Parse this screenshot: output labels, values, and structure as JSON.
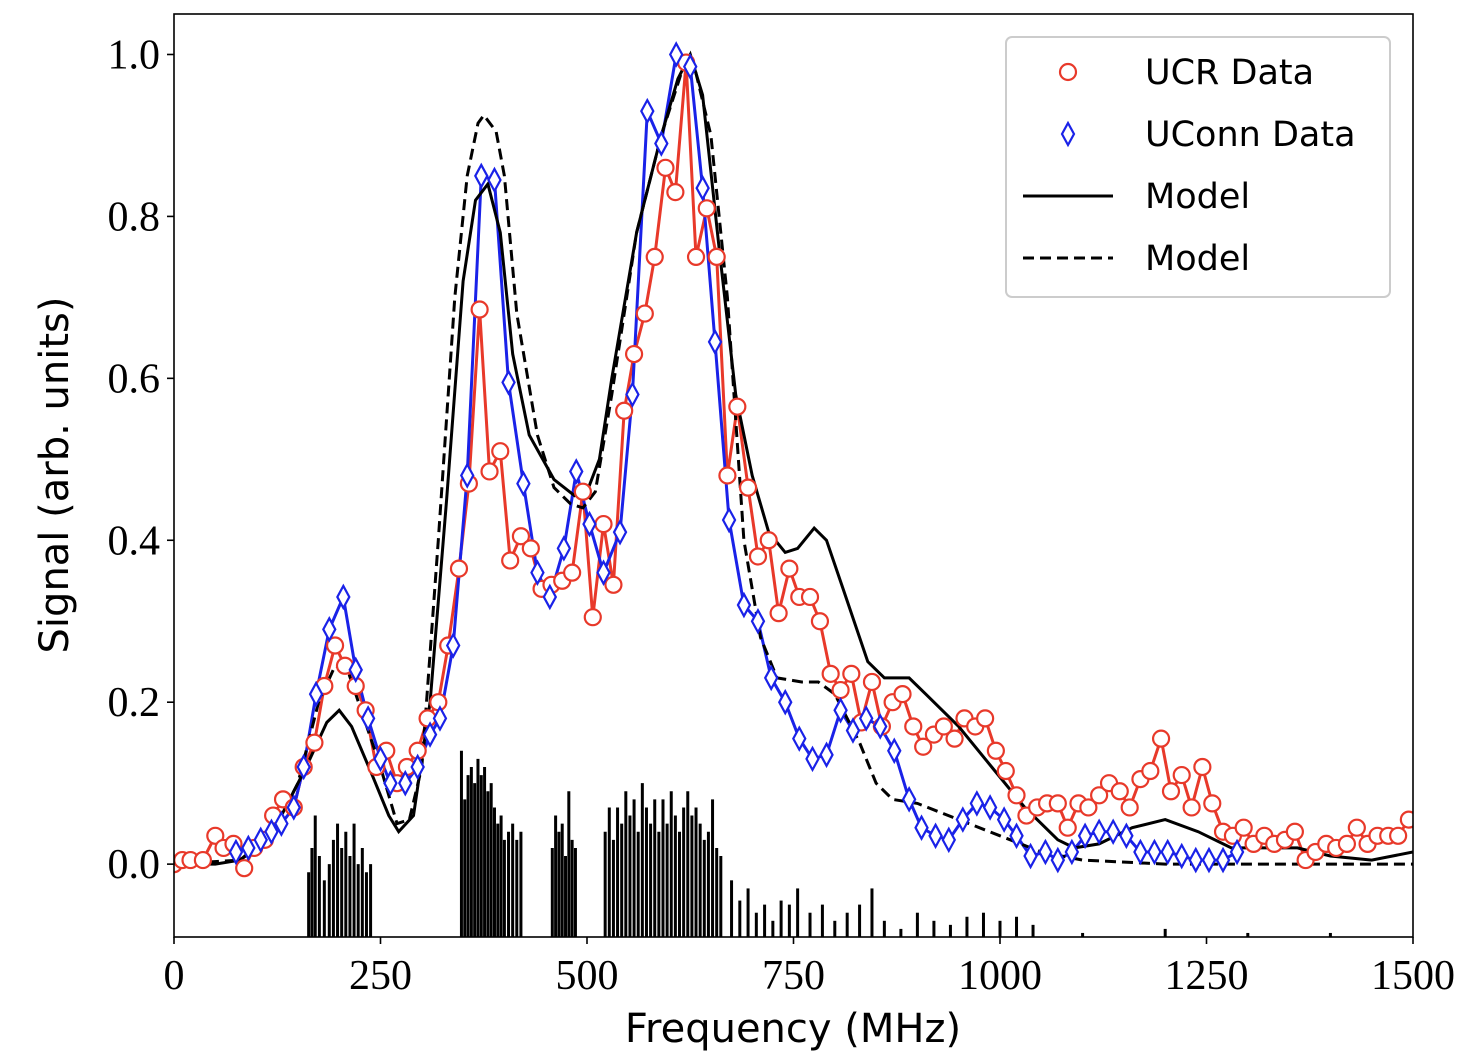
{
  "chart_data": {
    "type": "line",
    "x_label": "Frequency (MHz)",
    "y_label": "Signal (arb. units)",
    "xlim": [
      0,
      1500
    ],
    "ylim": [
      -0.09,
      1.05
    ],
    "xticks": [
      0,
      250,
      500,
      750,
      1000,
      1250,
      1500
    ],
    "yticks": [
      {
        "value": 0,
        "label": "0.0"
      },
      0.2,
      0.4,
      0.6,
      0.8,
      {
        "value": 1,
        "label": "1.0"
      }
    ],
    "legend": "upper right",
    "series": [
      {
        "name": "UCR Data",
        "color": "#e8392a",
        "marker": "circle",
        "linestyle": "solid",
        "x": [
          0,
          10,
          20,
          35,
          50,
          60,
          72,
          85,
          97,
          110,
          120,
          132,
          145,
          157,
          170,
          182,
          195,
          207,
          220,
          232,
          245,
          257,
          270,
          282,
          295,
          307,
          320,
          332,
          345,
          357,
          370,
          382,
          395,
          407,
          420,
          432,
          445,
          457,
          470,
          482,
          495,
          507,
          520,
          532,
          545,
          557,
          570,
          582,
          595,
          607,
          620,
          632,
          645,
          657,
          670,
          682,
          695,
          707,
          720,
          732,
          745,
          757,
          770,
          782,
          795,
          807,
          820,
          832,
          845,
          857,
          870,
          882,
          895,
          907,
          920,
          932,
          945,
          957,
          970,
          982,
          995,
          1007,
          1020,
          1032,
          1045,
          1057,
          1070,
          1082,
          1095,
          1107,
          1120,
          1132,
          1145,
          1157,
          1170,
          1182,
          1195,
          1207,
          1220,
          1232,
          1245,
          1257,
          1270,
          1282,
          1295,
          1307,
          1320,
          1332,
          1345,
          1357,
          1370,
          1382,
          1395,
          1407,
          1420,
          1432,
          1445,
          1457,
          1470,
          1482,
          1495
        ],
        "values": [
          0.0,
          0.005,
          0.005,
          0.005,
          0.035,
          0.02,
          0.025,
          -0.005,
          0.02,
          0.03,
          0.06,
          0.08,
          0.07,
          0.12,
          0.15,
          0.22,
          0.27,
          0.245,
          0.22,
          0.19,
          0.12,
          0.14,
          0.1,
          0.12,
          0.14,
          0.18,
          0.2,
          0.27,
          0.365,
          0.47,
          0.685,
          0.485,
          0.51,
          0.375,
          0.405,
          0.39,
          0.34,
          0.345,
          0.35,
          0.36,
          0.46,
          0.305,
          0.42,
          0.345,
          0.56,
          0.63,
          0.68,
          0.75,
          0.86,
          0.83,
          0.99,
          0.75,
          0.81,
          0.75,
          0.48,
          0.565,
          0.465,
          0.38,
          0.4,
          0.31,
          0.365,
          0.33,
          0.33,
          0.3,
          0.235,
          0.215,
          0.235,
          0.175,
          0.225,
          0.17,
          0.2,
          0.21,
          0.17,
          0.145,
          0.16,
          0.17,
          0.155,
          0.18,
          0.17,
          0.18,
          0.14,
          0.115,
          0.085,
          0.06,
          0.07,
          0.075,
          0.075,
          0.045,
          0.075,
          0.07,
          0.085,
          0.1,
          0.09,
          0.07,
          0.105,
          0.115,
          0.155,
          0.09,
          0.11,
          0.07,
          0.12,
          0.075,
          0.04,
          0.035,
          0.045,
          0.025,
          0.035,
          0.025,
          0.03,
          0.04,
          0.005,
          0.015,
          0.025,
          0.02,
          0.025,
          0.045,
          0.025,
          0.035,
          0.035,
          0.035,
          0.055
        ]
      },
      {
        "name": "UConn Data",
        "color": "#1a22e8",
        "marker": "diamond",
        "linestyle": "solid",
        "x": [
          75,
          90,
          105,
          118,
          130,
          145,
          157,
          172,
          188,
          205,
          220,
          235,
          250,
          262,
          280,
          295,
          310,
          322,
          338,
          355,
          372,
          388,
          405,
          423,
          440,
          455,
          472,
          487,
          503,
          520,
          540,
          555,
          573,
          590,
          608,
          625,
          640,
          655,
          672,
          690,
          707,
          723,
          740,
          757,
          773,
          790,
          807,
          822,
          838,
          855,
          872,
          890,
          905,
          922,
          938,
          955,
          972,
          988,
          1005,
          1020,
          1037,
          1055,
          1070,
          1087,
          1103,
          1120,
          1137,
          1153,
          1170,
          1187,
          1203,
          1220,
          1237,
          1253,
          1270,
          1287
        ],
        "values": [
          0.015,
          0.02,
          0.03,
          0.04,
          0.05,
          0.07,
          0.12,
          0.21,
          0.29,
          0.33,
          0.24,
          0.18,
          0.13,
          0.1,
          0.1,
          0.12,
          0.16,
          0.18,
          0.27,
          0.48,
          0.85,
          0.845,
          0.595,
          0.47,
          0.36,
          0.33,
          0.39,
          0.485,
          0.42,
          0.36,
          0.41,
          0.58,
          0.93,
          0.89,
          1.0,
          0.985,
          0.835,
          0.645,
          0.425,
          0.32,
          0.3,
          0.23,
          0.2,
          0.155,
          0.13,
          0.135,
          0.19,
          0.165,
          0.18,
          0.17,
          0.14,
          0.08,
          0.045,
          0.035,
          0.03,
          0.055,
          0.075,
          0.07,
          0.055,
          0.035,
          0.01,
          0.015,
          0.005,
          0.015,
          0.035,
          0.04,
          0.04,
          0.035,
          0.015,
          0.015,
          0.015,
          0.01,
          0.005,
          0.005,
          0.005,
          0.015
        ]
      },
      {
        "name": "Model",
        "color": "#000000",
        "marker": "none",
        "linestyle": "solid",
        "x": [
          0,
          50,
          80,
          100,
          130,
          160,
          185,
          200,
          215,
          240,
          260,
          272,
          290,
          310,
          330,
          350,
          365,
          380,
          395,
          410,
          430,
          460,
          485,
          500,
          515,
          530,
          560,
          590,
          610,
          625,
          640,
          660,
          680,
          700,
          720,
          740,
          755,
          775,
          790,
          810,
          840,
          860,
          890,
          910,
          950,
          990,
          1030,
          1070,
          1090,
          1120,
          1160,
          1200,
          1240,
          1280,
          1320,
          1360,
          1400,
          1450,
          1500
        ],
        "values": [
          0,
          0,
          0.005,
          0.02,
          0.06,
          0.12,
          0.175,
          0.19,
          0.17,
          0.11,
          0.06,
          0.04,
          0.06,
          0.2,
          0.45,
          0.72,
          0.82,
          0.84,
          0.78,
          0.63,
          0.53,
          0.475,
          0.455,
          0.46,
          0.5,
          0.6,
          0.78,
          0.9,
          0.97,
          1.0,
          0.95,
          0.76,
          0.58,
          0.48,
          0.41,
          0.385,
          0.39,
          0.415,
          0.4,
          0.34,
          0.25,
          0.23,
          0.23,
          0.21,
          0.17,
          0.12,
          0.07,
          0.03,
          0.02,
          0.025,
          0.045,
          0.055,
          0.04,
          0.02,
          0.02,
          0.02,
          0.01,
          0.005,
          0.015
        ]
      },
      {
        "name": "Model",
        "color": "#000000",
        "marker": "none",
        "linestyle": "dashed",
        "x": [
          0,
          80,
          120,
          150,
          175,
          195,
          210,
          230,
          250,
          270,
          285,
          300,
          320,
          340,
          355,
          368,
          375,
          390,
          400,
          415,
          440,
          460,
          480,
          495,
          510,
          530,
          560,
          590,
          615,
          630,
          650,
          670,
          690,
          710,
          730,
          760,
          780,
          800,
          830,
          850,
          870,
          900,
          950,
          1000,
          1050,
          1100,
          1200,
          1300,
          1400,
          1500
        ],
        "values": [
          0,
          0.005,
          0.04,
          0.1,
          0.2,
          0.245,
          0.24,
          0.18,
          0.12,
          0.05,
          0.055,
          0.12,
          0.4,
          0.7,
          0.85,
          0.915,
          0.925,
          0.905,
          0.85,
          0.68,
          0.53,
          0.465,
          0.445,
          0.44,
          0.46,
          0.58,
          0.78,
          0.9,
          0.98,
          0.985,
          0.9,
          0.7,
          0.4,
          0.28,
          0.23,
          0.225,
          0.225,
          0.21,
          0.15,
          0.1,
          0.08,
          0.075,
          0.055,
          0.035,
          0.015,
          0.005,
          0,
          0,
          0,
          0
        ]
      }
    ],
    "sticks": {
      "color": "#000000",
      "x": [
        163,
        167,
        171,
        176,
        182,
        188,
        193,
        198,
        203,
        208,
        213,
        218,
        223,
        228,
        233,
        238,
        348,
        352,
        356,
        360,
        364,
        368,
        372,
        376,
        380,
        384,
        388,
        392,
        396,
        400,
        405,
        410,
        415,
        420,
        458,
        462,
        466,
        470,
        474,
        478,
        482,
        486,
        522,
        527,
        532,
        537,
        542,
        547,
        552,
        557,
        562,
        567,
        572,
        577,
        582,
        587,
        592,
        597,
        602,
        607,
        612,
        617,
        622,
        627,
        632,
        637,
        642,
        647,
        652,
        657,
        662,
        675,
        685,
        695,
        705,
        715,
        725,
        735,
        745,
        755,
        770,
        785,
        800,
        815,
        830,
        845,
        860,
        880,
        900,
        920,
        940,
        960,
        980,
        1000,
        1020,
        1040,
        1100,
        1200,
        1300,
        1400
      ],
      "values": [
        -0.01,
        0.02,
        0.06,
        0.01,
        -0.02,
        0.0,
        0.03,
        0.05,
        0.02,
        0.04,
        0.01,
        0.05,
        0.0,
        0.02,
        -0.01,
        0.0,
        0.14,
        0.08,
        0.11,
        0.12,
        0.1,
        0.13,
        0.11,
        0.12,
        0.09,
        0.1,
        0.07,
        0.05,
        0.06,
        0.03,
        0.04,
        0.05,
        0.03,
        0.04,
        0.02,
        0.06,
        0.04,
        0.05,
        0.01,
        0.09,
        0.03,
        0.02,
        0.04,
        0.07,
        0.03,
        0.07,
        0.05,
        0.09,
        0.06,
        0.08,
        0.04,
        0.1,
        0.07,
        0.05,
        0.08,
        0.04,
        0.08,
        0.05,
        0.09,
        0.06,
        0.04,
        0.07,
        0.09,
        0.06,
        0.07,
        0.05,
        0.03,
        0.04,
        0.08,
        0.02,
        0.01,
        -0.02,
        -0.045,
        -0.03,
        -0.06,
        -0.05,
        -0.07,
        -0.045,
        -0.05,
        -0.03,
        -0.06,
        -0.05,
        -0.07,
        -0.06,
        -0.05,
        -0.03,
        -0.07,
        -0.08,
        -0.06,
        -0.07,
        -0.075,
        -0.065,
        -0.06,
        -0.07,
        -0.065,
        -0.075,
        -0.085,
        -0.08,
        -0.085,
        -0.085
      ]
    }
  }
}
